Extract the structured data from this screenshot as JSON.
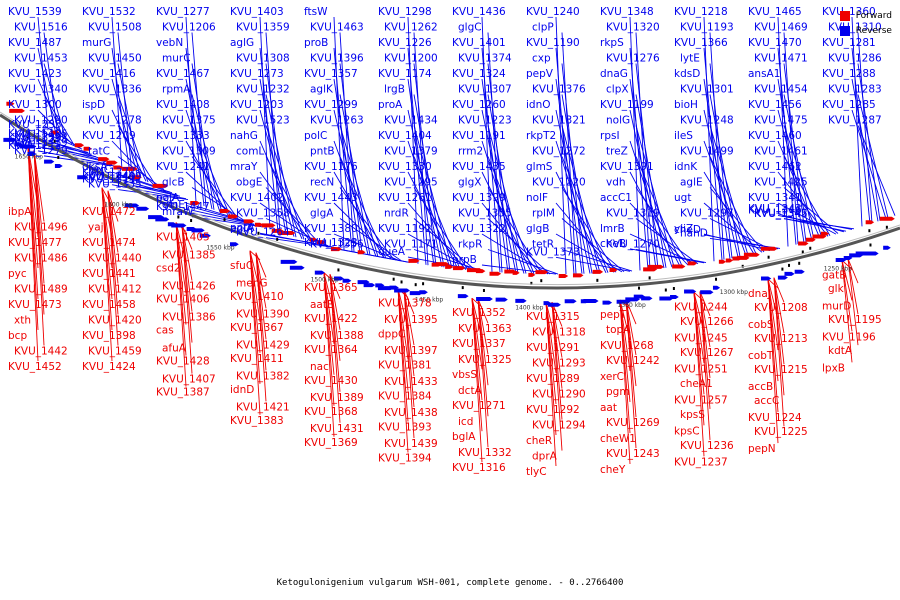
{
  "legend": {
    "items": [
      {
        "label": "Forward",
        "color": "#ee0000"
      },
      {
        "label": "Reverse",
        "color": "#0000ee"
      }
    ]
  },
  "caption": "Ketogulonigenium vulgarum WSH-001, complete genome. - 0..2766400",
  "map": {
    "ticks": [
      "1650 kbp",
      "1600 kbp",
      "1550 kbp",
      "1500 kbp",
      "1450 kbp",
      "1400 kbp",
      "1350 kbp",
      "1300 kbp",
      "1250 kbp"
    ],
    "reverse_labels": [
      "KVU_1539",
      "KVU_1516",
      "KVU_1487",
      "KVU_1453",
      "KVU_1423",
      "KVU_1340",
      "KVU_1300",
      "KVU_1280",
      "KVU_1235",
      "KVU_1533",
      "KVU_1510",
      "KVU_1485",
      "uvrA",
      "KVU_1419",
      "KVU_1339",
      "KVU_1279",
      "KVU_1212",
      "KVU_1532",
      "KVU_1508",
      "murG",
      "KVU_1450",
      "KVU_1416",
      "KVU_1336",
      "ispD",
      "KVU_1278",
      "KVU_1209",
      "tatC",
      "dksA",
      "lpxC",
      "KVU_1449",
      "KVU_1409",
      "KVU_1377",
      "KVU_1335",
      "KVU_1311",
      "KVU_1277",
      "KVU_1206",
      "vebN",
      "murC",
      "KVU_1467",
      "rpmA",
      "KVU_1408",
      "KVU_1375",
      "KVU_1333",
      "KVU_1309",
      "KVU_1241",
      "glcB",
      "polA",
      "glnE",
      "ftsZ",
      "mraW",
      "KVU_1447",
      "KVU_1403",
      "KVU_1359",
      "aglG",
      "KVU_1308",
      "KVU_1273",
      "KVU_1232",
      "KVU_1203",
      "KVU_1523",
      "nahG",
      "comL",
      "mraY",
      "obgE",
      "KVU_1402",
      "KVU_1358",
      "aglA",
      "KVU_1264",
      "pntA",
      "ftsW",
      "KVU_1463",
      "proB",
      "KVU_1396",
      "KVU_1357",
      "aglK",
      "KVU_1299",
      "KVU_1263",
      "polC",
      "pntB",
      "KVU_1176",
      "recN",
      "KVU_1443",
      "glgA",
      "KVU_1380",
      "KVU_1356",
      "KVU_1323",
      "KVU_1298",
      "KVU_1262",
      "KVU_1226",
      "KVU_1200",
      "KVU_1174",
      "lrgB",
      "proA",
      "KVU_1434",
      "KVU_1404",
      "KVU_1379",
      "KVU_1330",
      "KVU_1295",
      "KVU_1261",
      "nrdR",
      "KVU_1192",
      "KVU_1171",
      "queA",
      "KVU_1436",
      "glgC",
      "KVU_1401",
      "KVU_1374",
      "KVU_1324",
      "KVU_1307",
      "KVU_1260",
      "KVU_1223",
      "KVU_1191",
      "rrm2",
      "KVU_1435",
      "glgX",
      "KVU_1399",
      "KVU_1355",
      "KVU_1322",
      "rkpR",
      "prpB",
      "KVU_1240",
      "clpP",
      "KVU_1190",
      "cxp",
      "pepV",
      "KVU_1376",
      "idnO",
      "KVU_1321",
      "rkpT2",
      "KVU_1272",
      "glmS",
      "KVU_1220",
      "nolF",
      "rplM",
      "glgB",
      "tetR",
      "KVU_1373",
      "KVU_1348",
      "KVU_1320",
      "rkpS",
      "KVU_1276",
      "dnaG",
      "clpX",
      "KVU_1199",
      "nolG",
      "rpsI",
      "treZ",
      "KVU_1391",
      "vdh",
      "accC1",
      "KVU_1319",
      "lmrB",
      "KVU_1270",
      "cheB",
      "KVU_1218",
      "KVU_1193",
      "KVU_1366",
      "lytE",
      "kdsD",
      "KVU_1301",
      "bioH",
      "KVU_1248",
      "ileS",
      "KVU_1499",
      "idnK",
      "aglE",
      "ugt",
      "KVU_1297",
      "yiiZ",
      "nahD",
      "cheD",
      "KVU_1465",
      "KVU_1469",
      "KVU_1470",
      "KVU_1471",
      "ansA1",
      "KVU_1454",
      "KVU_1456",
      "KVU_1475",
      "KVU_1460",
      "KVU_1461",
      "KVU_1462",
      "KVU_1425",
      "KVU_1341",
      "KVU_1342",
      "KVU_1343",
      "KVU_1345",
      "KVU_1346",
      "KVU_1360",
      "KVU_1310",
      "KVU_1281",
      "KVU_1286",
      "KVU_1288",
      "KVU_1283",
      "KVU_1285",
      "KVU_1287"
    ],
    "forward_labels": [
      "ibpA",
      "KVU_1496",
      "KVU_1477",
      "KVU_1486",
      "pyc",
      "KVU_1489",
      "KVU_1473",
      "xth",
      "bcp",
      "KVU_1442",
      "KVU_1452",
      "KVU_1472",
      "yajI",
      "KVU_1474",
      "KVU_1440",
      "KVU_1441",
      "KVU_1412",
      "KVU_1458",
      "KVU_1420",
      "KVU_1398",
      "KVU_1459",
      "KVU_1424",
      "KVU_1405",
      "KVU_1385",
      "csd2",
      "KVU_1426",
      "KVU_1406",
      "KVU_1386",
      "cas",
      "afuA",
      "KVU_1428",
      "KVU_1407",
      "KVU_1387",
      "sfuC",
      "menG",
      "KVU_1410",
      "KVU_1390",
      "KVU_1367",
      "KVU_1429",
      "KVU_1411",
      "KVU_1382",
      "idnD",
      "KVU_1421",
      "KVU_1383",
      "KVU_1365",
      "aatB",
      "KVU_1422",
      "KVU_1388",
      "KVU_1364",
      "nac",
      "KVU_1430",
      "KVU_1389",
      "KVU_1368",
      "KVU_1431",
      "KVU_1369",
      "KVU_1378",
      "KVU_1395",
      "dppC",
      "KVU_1397",
      "KVU_1381",
      "KVU_1433",
      "KVU_1384",
      "KVU_1438",
      "KVU_1393",
      "KVU_1439",
      "KVU_1394",
      "KVU_1352",
      "KVU_1363",
      "KVU_1337",
      "KVU_1325",
      "vbsS",
      "dctA",
      "KVU_1271",
      "icd",
      "bglA",
      "KVU_1332",
      "KVU_1316",
      "KVU_1315",
      "KVU_1318",
      "KVU_1291",
      "KVU_1293",
      "KVU_1289",
      "KVU_1290",
      "KVU_1292",
      "KVU_1294",
      "cheR",
      "dprA",
      "tlyC",
      "pepT",
      "topA",
      "KVU_1268",
      "KVU_1242",
      "xerC",
      "pgm",
      "aat",
      "KVU_1269",
      "cheW1",
      "KVU_1243",
      "cheY",
      "KVU_1244",
      "KVU_1266",
      "KVU_1245",
      "KVU_1267",
      "KVU_1251",
      "cheA1",
      "KVU_1257",
      "kpsS",
      "kpsC",
      "KVU_1236",
      "KVU_1237",
      "dnaJ",
      "KVU_1208",
      "cobS",
      "KVU_1213",
      "cobT",
      "KVU_1215",
      "accB",
      "accC",
      "KVU_1224",
      "KVU_1225",
      "pepN",
      "gatB",
      "glk",
      "murD",
      "KVU_1195",
      "KVU_1196",
      "kdtA",
      "lpxB"
    ]
  }
}
